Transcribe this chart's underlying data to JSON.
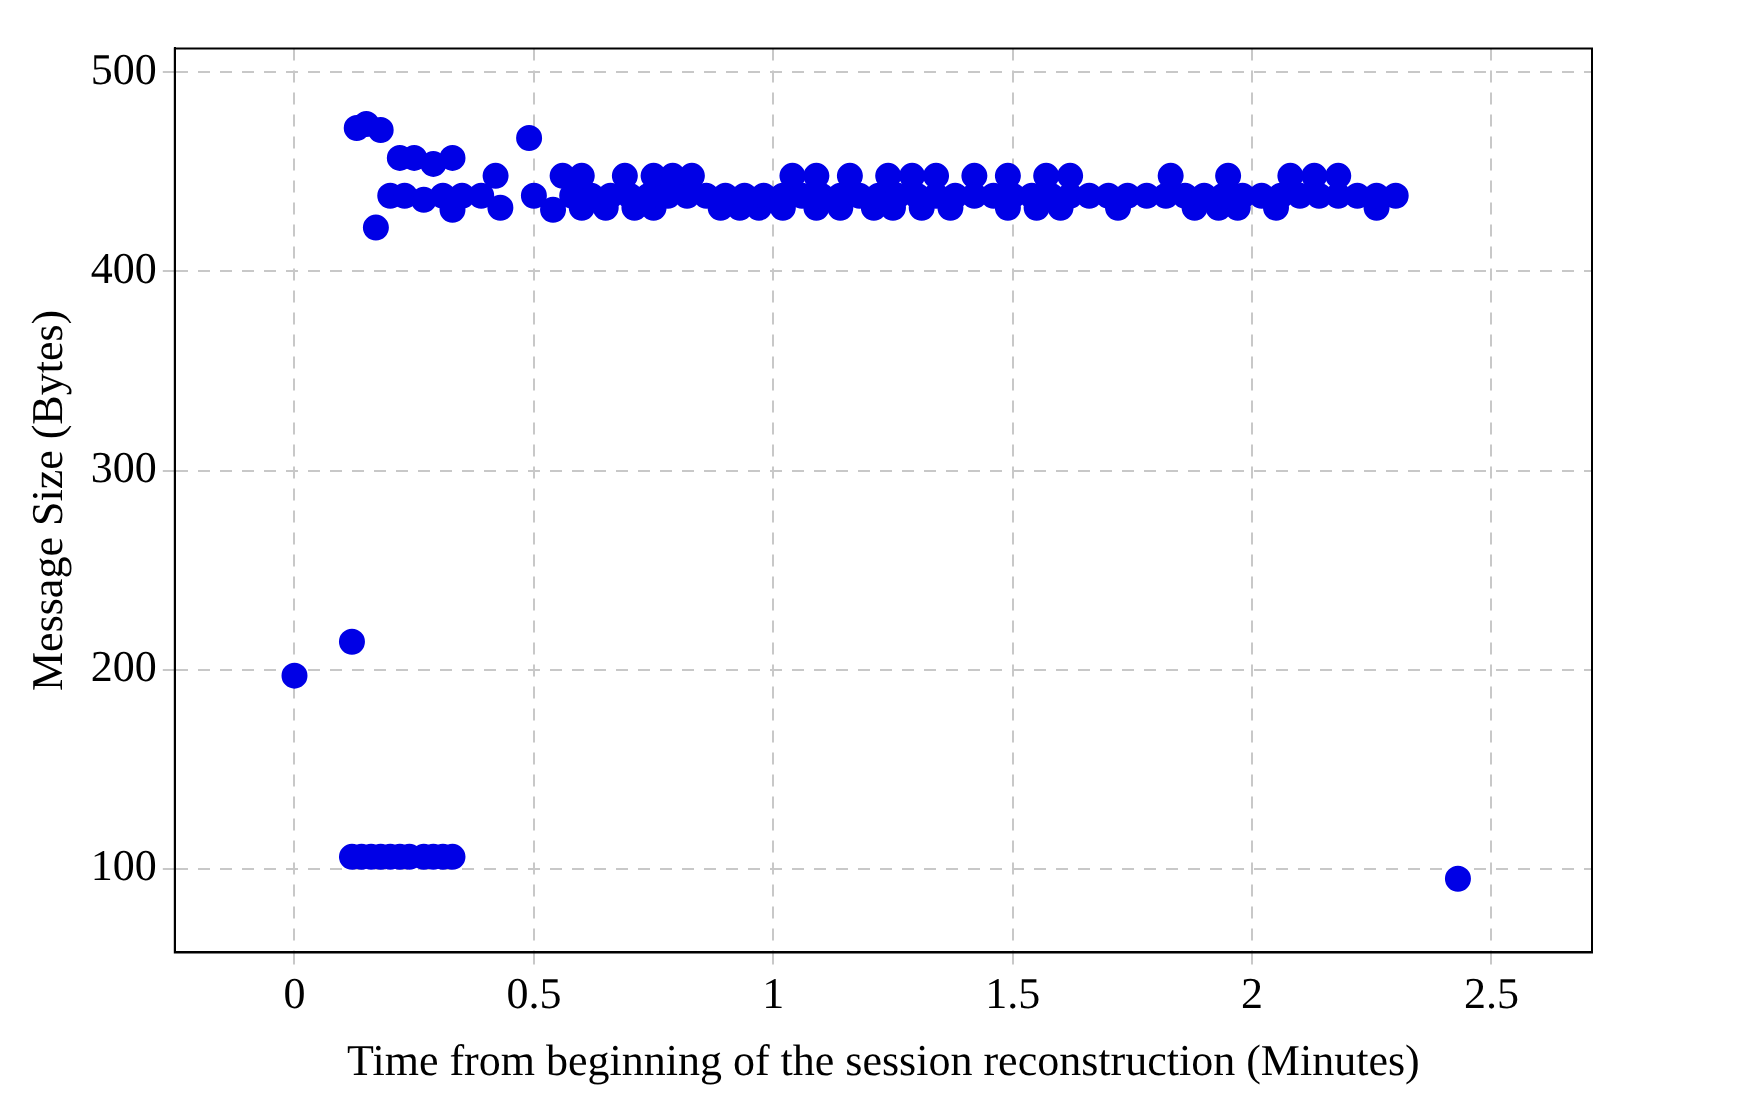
{
  "chart_data": {
    "type": "scatter",
    "xlabel": "Time from beginning of the session reconstruction (Minutes)",
    "ylabel": "Message Size (Bytes)",
    "xlim": [
      -0.25,
      2.71
    ],
    "ylim": [
      58,
      512
    ],
    "xticks": [
      0,
      0.5,
      1,
      1.5,
      2,
      2.5
    ],
    "yticks": [
      100,
      200,
      300,
      400,
      500
    ],
    "grid": true,
    "marker": "circle",
    "legend": false,
    "series": [
      {
        "color": "#0000e6",
        "x": [
          0,
          0.12,
          0.12,
          0.14,
          0.16,
          0.18,
          0.2,
          0.22,
          0.24,
          0.27,
          0.29,
          0.31,
          0.33,
          0.13,
          0.15,
          0.18,
          0.22,
          0.25,
          0.29,
          0.33,
          0.17,
          0.2,
          0.23,
          0.27,
          0.31,
          0.33,
          0.35,
          0.39,
          0.42,
          0.43,
          0.49,
          0.5,
          0.54,
          0.56,
          0.6,
          0.69,
          0.75,
          0.79,
          0.83,
          1.04,
          1.09,
          1.16,
          1.24,
          1.29,
          1.34,
          1.42,
          1.49,
          1.57,
          1.62,
          1.83,
          1.95,
          2.08,
          2.13,
          2.18,
          0.6,
          0.65,
          0.71,
          0.75,
          0.89,
          0.93,
          0.97,
          1.02,
          1.09,
          1.14,
          1.21,
          1.25,
          1.31,
          1.37,
          1.49,
          1.55,
          1.6,
          1.72,
          1.88,
          1.93,
          1.97,
          2.05,
          2.26,
          0.58,
          0.62,
          0.66,
          0.7,
          0.74,
          0.78,
          0.82,
          0.86,
          0.9,
          0.94,
          0.98,
          1.02,
          1.06,
          1.1,
          1.14,
          1.18,
          1.22,
          1.26,
          1.3,
          1.34,
          1.38,
          1.42,
          1.46,
          1.5,
          1.54,
          1.58,
          1.62,
          1.66,
          1.7,
          1.74,
          1.78,
          1.82,
          1.86,
          1.9,
          1.94,
          1.98,
          2.02,
          2.06,
          2.1,
          2.14,
          2.18,
          2.22,
          2.26,
          2.3,
          2.43
        ],
        "values": [
          197,
          214,
          106,
          106,
          106,
          106,
          106,
          106,
          106,
          106,
          106,
          106,
          106,
          472,
          474,
          471,
          457,
          457,
          454,
          457,
          422,
          438,
          438,
          436,
          438,
          431,
          438,
          438,
          448,
          432,
          467,
          438,
          431,
          448,
          448,
          448,
          448,
          448,
          448,
          448,
          448,
          448,
          448,
          448,
          448,
          448,
          448,
          448,
          448,
          448,
          448,
          448,
          448,
          448,
          432,
          432,
          432,
          432,
          432,
          432,
          432,
          432,
          432,
          432,
          432,
          432,
          432,
          432,
          432,
          432,
          432,
          432,
          432,
          432,
          432,
          432,
          432,
          438,
          438,
          438,
          438,
          438,
          438,
          438,
          438,
          438,
          438,
          438,
          438,
          438,
          438,
          438,
          438,
          438,
          438,
          438,
          438,
          438,
          438,
          438,
          438,
          438,
          438,
          438,
          438,
          438,
          438,
          438,
          438,
          438,
          438,
          438,
          438,
          438,
          438,
          438,
          438,
          438,
          438,
          438,
          438,
          95
        ]
      }
    ]
  }
}
